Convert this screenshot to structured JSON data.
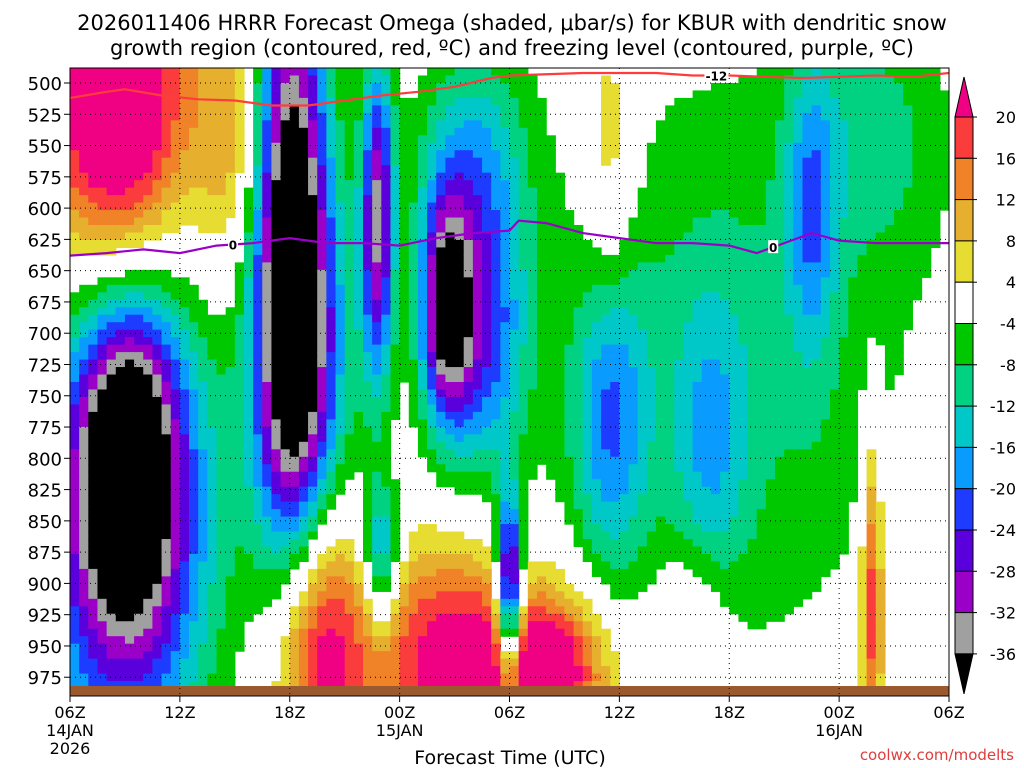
{
  "chart_data": {
    "type": "heatmap",
    "title": "2026011406 HRRR Forecast Omega (shaded, μbar/s) for KBUR with dendritic snow growth region (contoured, red, ºC) and freezing level (contoured, purple, ºC)",
    "title_line1": "2026011406 HRRR Forecast Omega (shaded, μbar/s) for KBUR with dendritic snow",
    "title_line2": "growth region (contoured, red, ºC) and freezing level (contoured, purple, ºC)",
    "xlabel": "Forecast Time (UTC)",
    "credit": "coolwx.com/modelts",
    "x_range_hours": [
      0,
      48
    ],
    "y_range_hpa": [
      488,
      990
    ],
    "grid": "dotted",
    "x_ticks": [
      {
        "hour": 0,
        "label": "06Z",
        "sub1": "14JAN",
        "sub2": "2026"
      },
      {
        "hour": 6,
        "label": "12Z"
      },
      {
        "hour": 12,
        "label": "18Z"
      },
      {
        "hour": 18,
        "label": "00Z",
        "sub1": "15JAN"
      },
      {
        "hour": 24,
        "label": "06Z"
      },
      {
        "hour": 30,
        "label": "12Z"
      },
      {
        "hour": 36,
        "label": "18Z"
      },
      {
        "hour": 42,
        "label": "00Z",
        "sub1": "16JAN"
      },
      {
        "hour": 48,
        "label": "06Z"
      }
    ],
    "y_ticks": [
      500,
      525,
      550,
      575,
      600,
      625,
      650,
      675,
      700,
      725,
      750,
      775,
      800,
      825,
      850,
      875,
      900,
      925,
      950,
      975
    ],
    "colorbar": {
      "levels": [
        -36,
        -32,
        -28,
        -24,
        -20,
        -16,
        -12,
        -8,
        -4,
        4,
        8,
        12,
        16,
        20
      ],
      "labels": [
        "20",
        "16",
        "12",
        "8",
        "4",
        "-4",
        "-8",
        "-12",
        "-16",
        "-20",
        "-24",
        "-28",
        "-32",
        "-36"
      ],
      "colors": [
        "#000000",
        "#a0a0a0",
        "#9b00c8",
        "#5a00dc",
        "#1e3cff",
        "#0a9bff",
        "#00c8c8",
        "#00d282",
        "#00c800",
        "#ffffff",
        "#e6dc32",
        "#e6af2d",
        "#f08228",
        "#fa3c3c",
        "#f00082"
      ]
    },
    "surface_color": "#9b5a2d",
    "frz_color": "#9b00c8",
    "dgz_color": "#ff3c3c",
    "omega_features": [
      {
        "t": 1.5,
        "p": 510,
        "dt": 4.0,
        "dp": 160,
        "v": 22
      },
      {
        "t": 3.5,
        "p": 520,
        "dt": 3.0,
        "dp": 140,
        "v": 16
      },
      {
        "t": 9.0,
        "p": 540,
        "dt": 2.4,
        "dp": 120,
        "v": 12
      },
      {
        "t": 3.0,
        "p": 840,
        "dt": 4.5,
        "dp": 190,
        "v": -40
      },
      {
        "t": 3.2,
        "p": 790,
        "dt": 2.2,
        "dp": 110,
        "v": -20
      },
      {
        "t": 12.0,
        "p": 620,
        "dt": 2.0,
        "dp": 250,
        "v": -42
      },
      {
        "t": 13.0,
        "p": 730,
        "dt": 2.6,
        "dp": 160,
        "v": -18
      },
      {
        "t": 16.8,
        "p": 610,
        "dt": 0.9,
        "dp": 130,
        "v": -32
      },
      {
        "t": 17.0,
        "p": 880,
        "dt": 1.0,
        "dp": 60,
        "v": -20
      },
      {
        "t": 20.5,
        "p": 680,
        "dt": 1.4,
        "dp": 90,
        "v": -32
      },
      {
        "t": 22.5,
        "p": 700,
        "dt": 2.4,
        "dp": 110,
        "v": -22
      },
      {
        "t": 24.0,
        "p": 905,
        "dt": 0.7,
        "dp": 70,
        "v": -40
      },
      {
        "t": 29.5,
        "p": 770,
        "dt": 2.0,
        "dp": 120,
        "v": -16
      },
      {
        "t": 35.0,
        "p": 790,
        "dt": 2.0,
        "dp": 120,
        "v": -10
      },
      {
        "t": 36.0,
        "p": 720,
        "dt": 10.0,
        "dp": 240,
        "v": -9
      },
      {
        "t": 22.0,
        "p": 560,
        "dt": 3.0,
        "dp": 90,
        "v": -14
      },
      {
        "t": 40.5,
        "p": 600,
        "dt": 1.4,
        "dp": 120,
        "v": -14
      },
      {
        "t": 44.0,
        "p": 540,
        "dt": 4.0,
        "dp": 100,
        "v": -8
      },
      {
        "t": 13.5,
        "p": 950,
        "dt": 2.5,
        "dp": 120,
        "v": 24
      },
      {
        "t": 21.0,
        "p": 960,
        "dt": 5.0,
        "dp": 90,
        "v": 24
      },
      {
        "t": 26.5,
        "p": 970,
        "dt": 3.0,
        "dp": 60,
        "v": 22
      },
      {
        "t": 43.8,
        "p": 915,
        "dt": 0.6,
        "dp": 130,
        "v": 20
      },
      {
        "t": 29.5,
        "p": 560,
        "dt": 1.4,
        "dp": 120,
        "v": 9
      },
      {
        "t": 34.0,
        "p": 930,
        "dt": 2.0,
        "dp": 60,
        "v": 8
      }
    ],
    "freezing_level": {
      "label": "0",
      "points": [
        [
          0,
          638
        ],
        [
          2,
          636
        ],
        [
          4,
          633
        ],
        [
          6,
          636
        ],
        [
          8,
          630
        ],
        [
          10,
          628
        ],
        [
          12,
          624
        ],
        [
          14,
          628
        ],
        [
          16,
          628
        ],
        [
          18,
          630
        ],
        [
          20,
          624
        ],
        [
          22,
          620
        ],
        [
          24,
          618
        ],
        [
          24.5,
          610
        ],
        [
          26,
          612
        ],
        [
          28,
          620
        ],
        [
          30,
          624
        ],
        [
          32,
          628
        ],
        [
          34,
          628
        ],
        [
          36,
          630
        ],
        [
          37.5,
          636
        ],
        [
          39,
          628
        ],
        [
          40.5,
          620
        ],
        [
          42,
          626
        ],
        [
          44,
          628
        ],
        [
          46,
          628
        ],
        [
          48,
          628
        ]
      ]
    },
    "dgz_contour": {
      "label": "-12",
      "points": [
        [
          0,
          512
        ],
        [
          2,
          507
        ],
        [
          3,
          505
        ],
        [
          5,
          510
        ],
        [
          7,
          513
        ],
        [
          9,
          514
        ],
        [
          11,
          518
        ],
        [
          13,
          518
        ],
        [
          15,
          514
        ],
        [
          17,
          510
        ],
        [
          19,
          507
        ],
        [
          21,
          503
        ],
        [
          23,
          496
        ],
        [
          24,
          494
        ],
        [
          28,
          492
        ],
        [
          30,
          492
        ],
        [
          32,
          492
        ],
        [
          34,
          494
        ],
        [
          36,
          494
        ],
        [
          38,
          495
        ],
        [
          40,
          496
        ],
        [
          42,
          495
        ],
        [
          44,
          494
        ],
        [
          46,
          495
        ],
        [
          48,
          492
        ]
      ]
    },
    "dgz_label_hour": 35.3,
    "frz_label_hours": [
      8.9,
      38.4
    ]
  }
}
